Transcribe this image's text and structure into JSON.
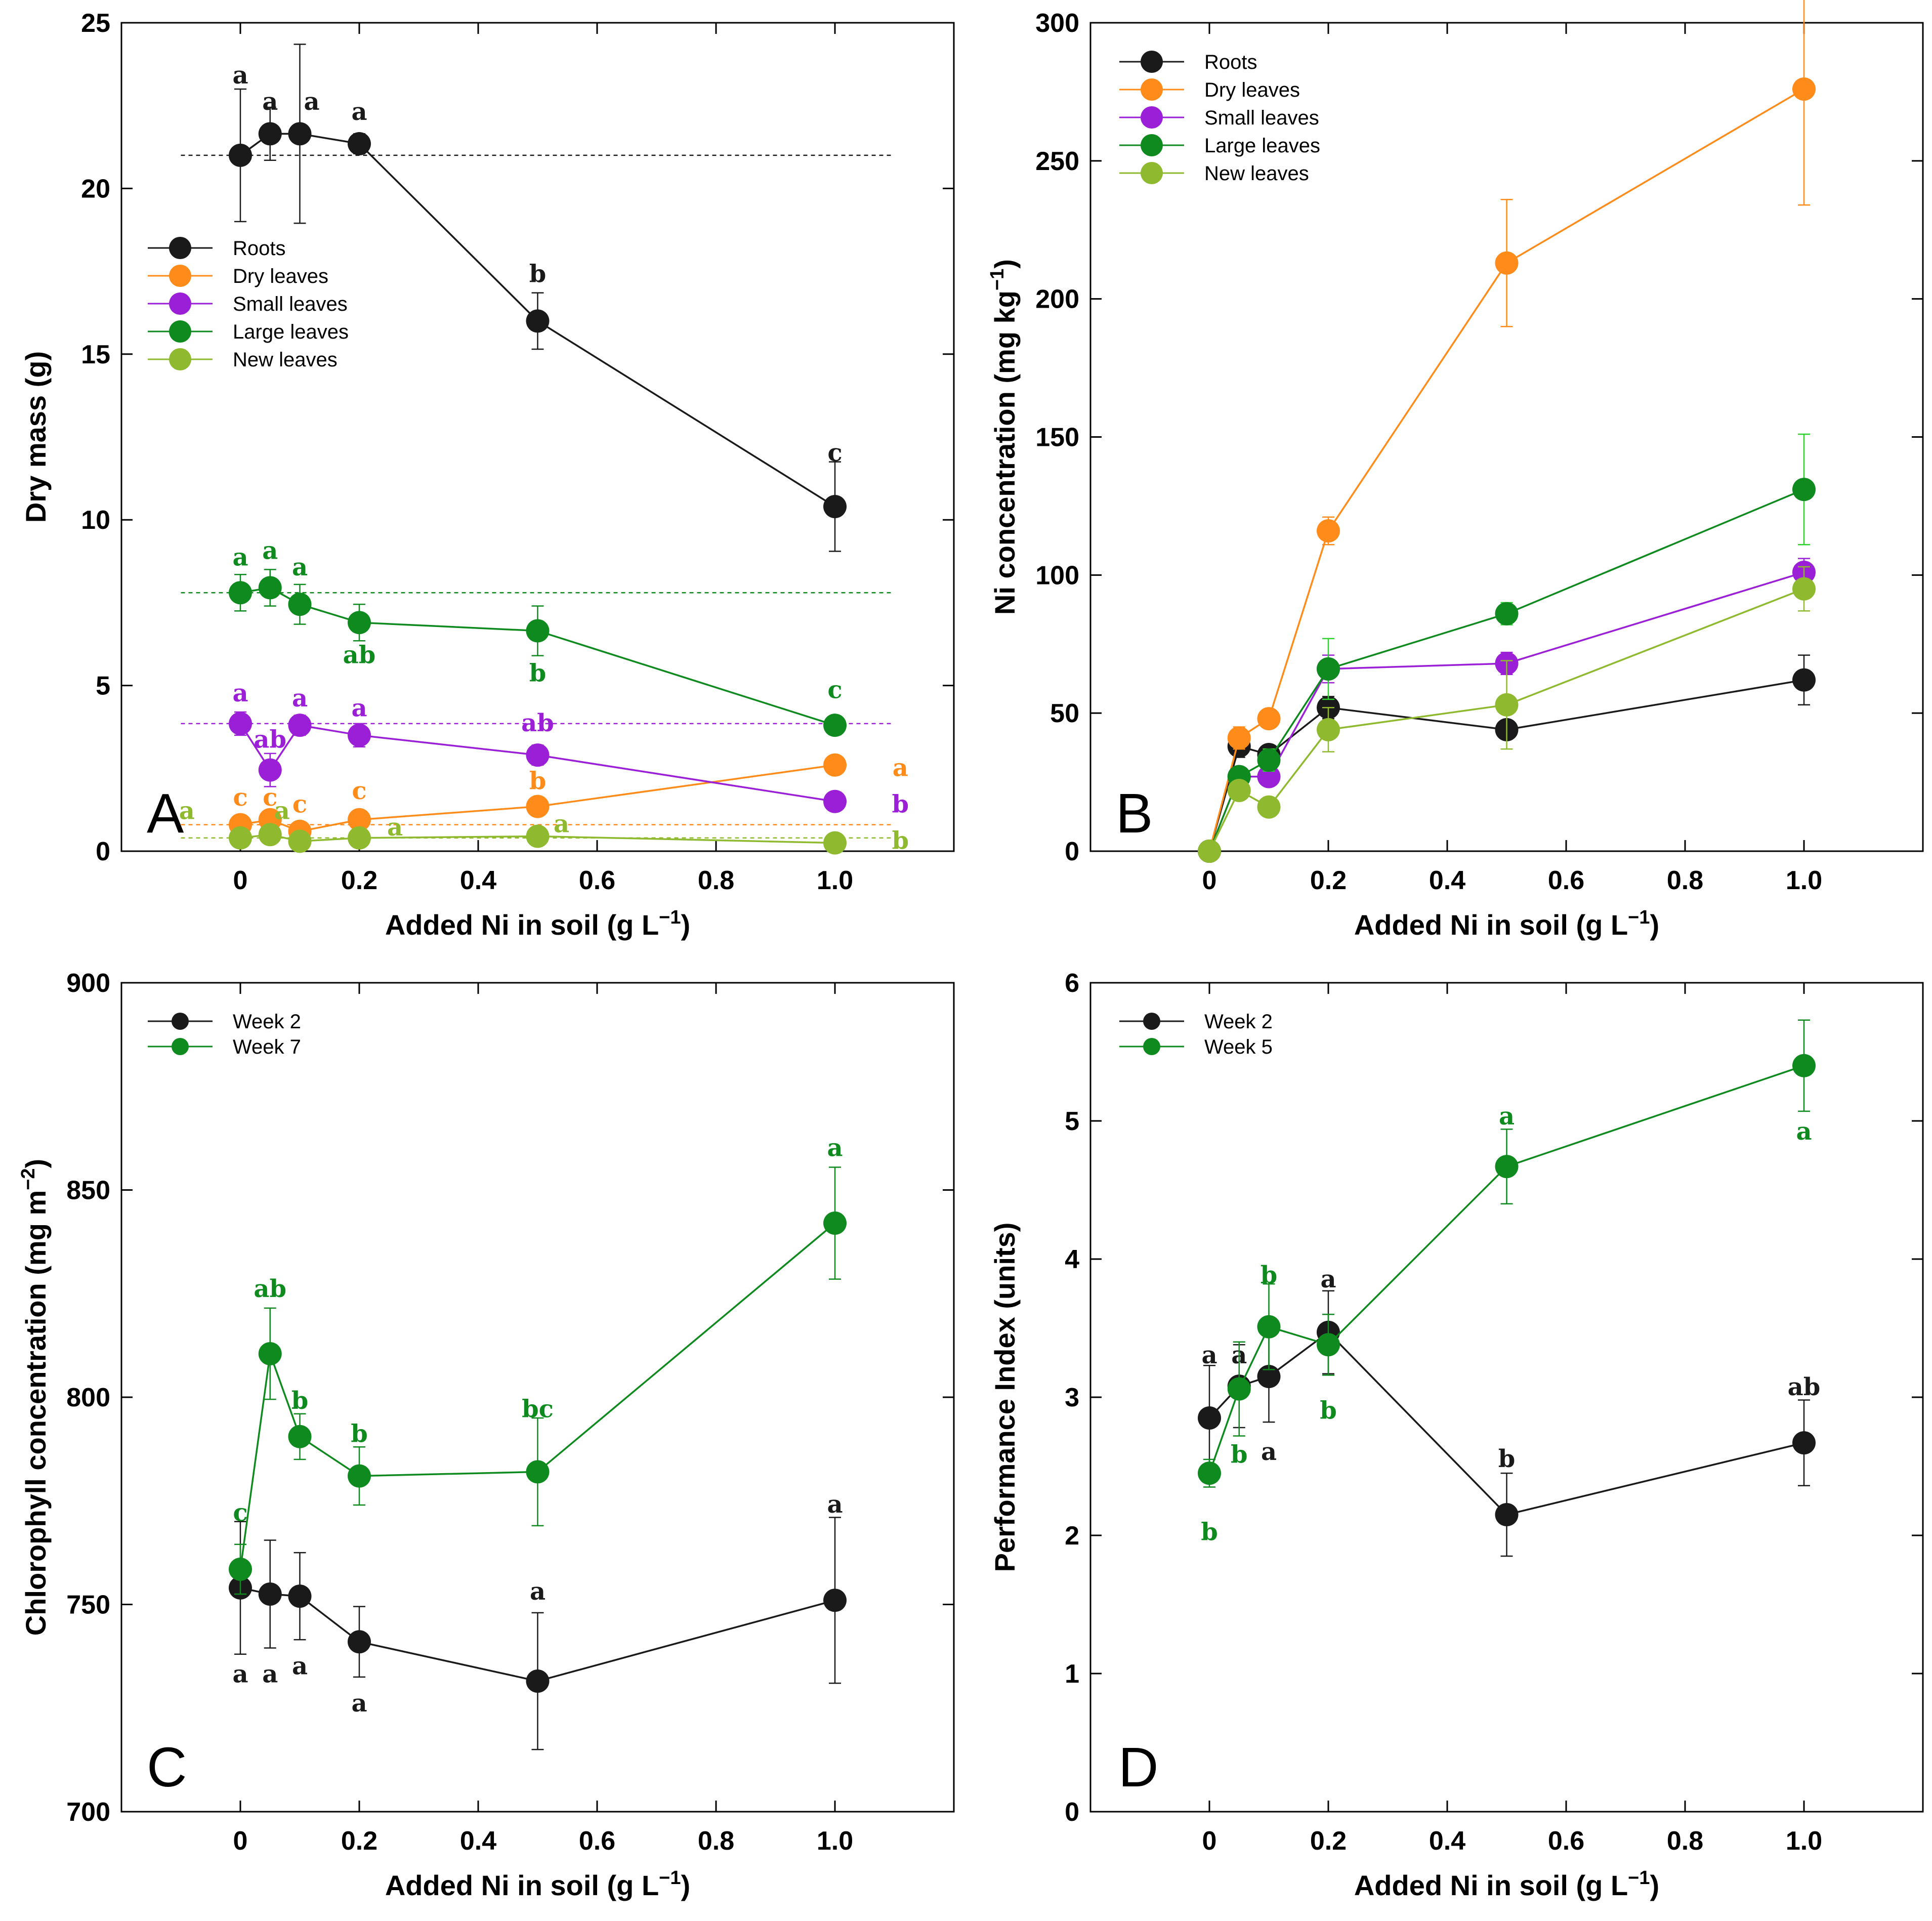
{
  "chart_data": [
    {
      "type": "line",
      "panel": "A",
      "xlabel": "Added Ni in soil (g L",
      "xlabel_sup": "−1",
      "xlabel_end": ")",
      "ylabel": "Dry mass (g)",
      "ylabel_sup": "",
      "ylabel_end": "",
      "xlim": [
        -0.2,
        1.2
      ],
      "ylim": [
        0,
        25
      ],
      "xticks": [
        0,
        0.2,
        0.4,
        0.6,
        0.8,
        1.0
      ],
      "xtick_labels": [
        "0",
        "0.2",
        "0.4",
        "0.6",
        "0.8",
        "1.0"
      ],
      "yticks": [
        0,
        5,
        10,
        15,
        20,
        25
      ],
      "ytick_labels": [
        "0",
        "5",
        "10",
        "15",
        "20",
        "25"
      ],
      "legend_position": "middle-left",
      "series": [
        {
          "name": "Roots",
          "color": "#1a1a1a",
          "x": [
            0,
            0.05,
            0.1,
            0.2,
            0.5,
            1.0
          ],
          "y": [
            21.0,
            21.65,
            21.65,
            21.35,
            16.0,
            10.4
          ],
          "err": [
            2.0,
            0.8,
            2.7,
            0.3,
            0.85,
            1.35
          ],
          "baseline": 21.0,
          "sig": [
            {
              "x": 0,
              "y": 23.4,
              "t": "a"
            },
            {
              "x": 0.05,
              "y": 22.6,
              "t": "a"
            },
            {
              "x": 0.12,
              "y": 22.6,
              "t": "a"
            },
            {
              "x": 0.2,
              "y": 22.3,
              "t": "a"
            },
            {
              "x": 0.5,
              "y": 17.4,
              "t": "b"
            },
            {
              "x": 1.0,
              "y": 12.0,
              "t": "c"
            }
          ]
        },
        {
          "name": "Dry leaves",
          "color": "#ff8c1a",
          "x": [
            0,
            0.05,
            0.1,
            0.2,
            0.5,
            1.0
          ],
          "y": [
            0.8,
            0.95,
            0.6,
            0.95,
            1.35,
            2.6
          ],
          "err": [
            0,
            0,
            0,
            0,
            0,
            0
          ],
          "baseline": 0.8,
          "sig": [
            {
              "x": 0,
              "y": 1.6,
              "t": "c"
            },
            {
              "x": 0.05,
              "y": 1.6,
              "t": "c"
            },
            {
              "x": 0.1,
              "y": 1.4,
              "t": "c"
            },
            {
              "x": 0.2,
              "y": 1.8,
              "t": "c"
            },
            {
              "x": 0.5,
              "y": 2.1,
              "t": "b"
            },
            {
              "x": 1.11,
              "y": 2.5,
              "t": "a"
            }
          ]
        },
        {
          "name": "Small leaves",
          "color": "#9a1fd6",
          "x": [
            0,
            0.05,
            0.1,
            0.2,
            0.5,
            1.0
          ],
          "y": [
            3.85,
            2.45,
            3.8,
            3.5,
            2.9,
            1.5
          ],
          "err": [
            0.35,
            0.5,
            0.3,
            0.35,
            0.3,
            0
          ],
          "baseline": 3.85,
          "sig": [
            {
              "x": 0,
              "y": 4.75,
              "t": "a"
            },
            {
              "x": 0.05,
              "y": 3.35,
              "t": "ab"
            },
            {
              "x": 0.1,
              "y": 4.6,
              "t": "a"
            },
            {
              "x": 0.2,
              "y": 4.3,
              "t": "a"
            },
            {
              "x": 0.5,
              "y": 3.85,
              "t": "ab"
            },
            {
              "x": 1.11,
              "y": 1.4,
              "t": "b"
            }
          ]
        },
        {
          "name": "Large leaves",
          "color": "#0f8a1f",
          "x": [
            0,
            0.05,
            0.1,
            0.2,
            0.5,
            1.0
          ],
          "y": [
            7.8,
            7.95,
            7.45,
            6.9,
            6.65,
            3.8
          ],
          "err": [
            0.55,
            0.55,
            0.6,
            0.55,
            0.75,
            0
          ],
          "baseline": 7.8,
          "sig": [
            {
              "x": 0,
              "y": 8.85,
              "t": "a"
            },
            {
              "x": 0.05,
              "y": 9.05,
              "t": "a"
            },
            {
              "x": 0.1,
              "y": 8.55,
              "t": "a"
            },
            {
              "x": 0.2,
              "y": 5.9,
              "t": "ab"
            },
            {
              "x": 0.5,
              "y": 5.35,
              "t": "b"
            },
            {
              "x": 1.0,
              "y": 4.85,
              "t": "c"
            }
          ]
        },
        {
          "name": "New leaves",
          "color": "#8fba2f",
          "x": [
            0,
            0.05,
            0.1,
            0.2,
            0.5,
            1.0
          ],
          "y": [
            0.4,
            0.5,
            0.3,
            0.4,
            0.45,
            0.25
          ],
          "err": [
            0,
            0,
            0,
            0,
            0,
            0
          ],
          "baseline": 0.4,
          "sig": [
            {
              "x": -0.09,
              "y": 1.2,
              "t": "a"
            },
            {
              "x": 0.07,
              "y": 1.2,
              "t": "a"
            },
            {
              "x": 0.26,
              "y": 0.7,
              "t": "a"
            },
            {
              "x": 0.54,
              "y": 0.8,
              "t": "a"
            },
            {
              "x": 1.11,
              "y": 0.3,
              "t": "b"
            }
          ]
        }
      ]
    },
    {
      "type": "line",
      "panel": "B",
      "xlabel": "Added Ni in soil (g L",
      "xlabel_sup": "−1",
      "xlabel_end": ")",
      "ylabel": "Ni concentration (mg kg",
      "ylabel_sup": "−1",
      "ylabel_end": ")",
      "xlim": [
        -0.2,
        1.2
      ],
      "ylim": [
        0,
        300
      ],
      "xticks": [
        0,
        0.2,
        0.4,
        0.6,
        0.8,
        1.0
      ],
      "xtick_labels": [
        "0",
        "0.2",
        "0.4",
        "0.6",
        "0.8",
        "1.0"
      ],
      "yticks": [
        0,
        50,
        100,
        150,
        200,
        250,
        300
      ],
      "ytick_labels": [
        "0",
        "50",
        "100",
        "150",
        "200",
        "250",
        "300"
      ],
      "legend_position": "top-left",
      "series": [
        {
          "name": "Roots",
          "color": "#1a1a1a",
          "x": [
            0,
            0.05,
            0.1,
            0.2,
            0.5,
            1.0
          ],
          "y": [
            0,
            38,
            35,
            52,
            44,
            62
          ],
          "err": [
            0,
            4,
            3,
            4,
            3,
            9
          ],
          "sig": []
        },
        {
          "name": "Dry leaves",
          "color": "#ff8c1a",
          "x": [
            0,
            0.05,
            0.1,
            0.2,
            0.5,
            1.0
          ],
          "y": [
            0,
            41,
            48,
            116,
            213,
            276
          ],
          "err": [
            0,
            4,
            3,
            5,
            23,
            42
          ],
          "sig": []
        },
        {
          "name": "Small leaves",
          "color": "#9a1fd6",
          "x": [
            0,
            0.05,
            0.1,
            0.2,
            0.5,
            1.0
          ],
          "y": [
            0,
            27,
            27,
            66,
            68,
            101
          ],
          "err": [
            0,
            3,
            3,
            5,
            4,
            5
          ],
          "sig": []
        },
        {
          "name": "Large leaves",
          "color": "#0f8a1f",
          "x": [
            0,
            0.05,
            0.1,
            0.2,
            0.5,
            1.0
          ],
          "y": [
            0,
            27,
            33,
            66,
            86,
            131
          ],
          "err": [
            0,
            3,
            4,
            11,
            4,
            20
          ],
          "sig": []
        },
        {
          "name": "New leaves",
          "color": "#8fba2f",
          "x": [
            0,
            0.05,
            0.1,
            0.2,
            0.5,
            1.0
          ],
          "y": [
            0,
            22,
            16,
            44,
            53,
            95
          ],
          "err": [
            0,
            3,
            3,
            8,
            16,
            8
          ],
          "sig": []
        }
      ]
    },
    {
      "type": "line",
      "panel": "C",
      "xlabel": "Added Ni in soil (g L",
      "xlabel_sup": "−1",
      "xlabel_end": ")",
      "ylabel": "Chlorophyll concentration (mg m",
      "ylabel_sup": "−2",
      "ylabel_end": ")",
      "xlim": [
        -0.2,
        1.2
      ],
      "ylim": [
        700,
        900
      ],
      "xticks": [
        0,
        0.2,
        0.4,
        0.6,
        0.8,
        1.0
      ],
      "xtick_labels": [
        "0",
        "0.2",
        "0.4",
        "0.6",
        "0.8",
        "1.0"
      ],
      "yticks": [
        700,
        750,
        800,
        850,
        900
      ],
      "ytick_labels": [
        "700",
        "750",
        "800",
        "850",
        "900"
      ],
      "legend_position": "top-left",
      "series": [
        {
          "name": "Week 2",
          "color": "#1a1a1a",
          "x": [
            0,
            0.05,
            0.1,
            0.2,
            0.5,
            1.0
          ],
          "y": [
            754,
            752.5,
            752,
            741,
            731.5,
            751
          ],
          "err": [
            16,
            13,
            10.5,
            8.5,
            16.5,
            20
          ],
          "sig": [
            {
              "x": 0,
              "y": 733,
              "t": "a"
            },
            {
              "x": 0.05,
              "y": 733,
              "t": "a"
            },
            {
              "x": 0.1,
              "y": 735,
              "t": "a"
            },
            {
              "x": 0.2,
              "y": 726,
              "t": "a"
            },
            {
              "x": 0.5,
              "y": 753,
              "t": "a"
            },
            {
              "x": 1.0,
              "y": 774,
              "t": "a"
            }
          ]
        },
        {
          "name": "Week 7",
          "color": "#0f8a1f",
          "x": [
            0,
            0.05,
            0.1,
            0.2,
            0.5,
            1.0
          ],
          "y": [
            758.5,
            810.5,
            790.5,
            781,
            782,
            842
          ],
          "err": [
            6,
            11,
            5.5,
            7,
            13,
            13.5
          ],
          "sig": [
            {
              "x": 0,
              "y": 772,
              "t": "c"
            },
            {
              "x": 0.05,
              "y": 826,
              "t": "ab"
            },
            {
              "x": 0.1,
              "y": 799,
              "t": "b"
            },
            {
              "x": 0.2,
              "y": 791,
              "t": "b"
            },
            {
              "x": 0.5,
              "y": 797,
              "t": "bc"
            },
            {
              "x": 1.0,
              "y": 860,
              "t": "a"
            }
          ]
        }
      ]
    },
    {
      "type": "line",
      "panel": "D",
      "xlabel": "Added Ni in soil (g L",
      "xlabel_sup": "−1",
      "xlabel_end": ")",
      "ylabel": "Performance Index (units)",
      "ylabel_sup": "",
      "ylabel_end": "",
      "xlim": [
        -0.2,
        1.2
      ],
      "ylim": [
        0,
        6
      ],
      "xticks": [
        0,
        0.2,
        0.4,
        0.6,
        0.8,
        1.0
      ],
      "xtick_labels": [
        "0",
        "0.2",
        "0.4",
        "0.6",
        "0.8",
        "1.0"
      ],
      "yticks": [
        0,
        1,
        2,
        3,
        4,
        5,
        6
      ],
      "ytick_labels": [
        "0",
        "1",
        "2",
        "3",
        "4",
        "5",
        "6"
      ],
      "legend_position": "top-left",
      "series": [
        {
          "name": "Week 2",
          "color": "#1a1a1a",
          "x": [
            0,
            0.05,
            0.1,
            0.2,
            0.5,
            1.0
          ],
          "y": [
            2.85,
            3.08,
            3.15,
            3.47,
            2.15,
            2.67
          ],
          "err": [
            0.38,
            0.3,
            0.33,
            0.3,
            0.3,
            0.31
          ],
          "sig": [
            {
              "x": 0,
              "y": 3.3,
              "t": "a"
            },
            {
              "x": 0.05,
              "y": 3.3,
              "t": "a"
            },
            {
              "x": 0.1,
              "y": 2.6,
              "t": "a"
            },
            {
              "x": 0.2,
              "y": 3.85,
              "t": "a"
            },
            {
              "x": 0.5,
              "y": 2.55,
              "t": "b"
            },
            {
              "x": 1.0,
              "y": 3.07,
              "t": "ab"
            }
          ]
        },
        {
          "name": "Week 5",
          "color": "#0f8a1f",
          "x": [
            0,
            0.05,
            0.1,
            0.2,
            0.5,
            1.0
          ],
          "y": [
            2.45,
            3.06,
            3.51,
            3.38,
            4.67,
            5.4
          ],
          "err": [
            0.1,
            0.34,
            0.31,
            0.22,
            0.27,
            0.33
          ],
          "sig": [
            {
              "x": 0,
              "y": 2.02,
              "t": "b"
            },
            {
              "x": 0.05,
              "y": 2.58,
              "t": "b"
            },
            {
              "x": 0.1,
              "y": 3.88,
              "t": "b"
            },
            {
              "x": 0.2,
              "y": 2.9,
              "t": "b"
            },
            {
              "x": 0.5,
              "y": 5.03,
              "t": "a"
            },
            {
              "x": 1.0,
              "y": 4.92,
              "t": "a"
            }
          ]
        }
      ]
    }
  ]
}
